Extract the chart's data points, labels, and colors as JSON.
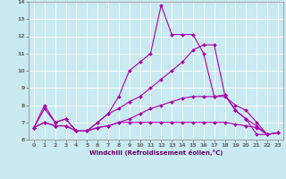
{
  "xlabel": "Windchill (Refroidissement éolien,°C)",
  "xlim": [
    -0.5,
    23.5
  ],
  "ylim": [
    6,
    14
  ],
  "background_color": "#c8eaf0",
  "grid_color": "#ffffff",
  "line_color": "#aa00aa",
  "curves": [
    {
      "x": [
        0,
        1,
        2,
        3,
        4,
        5,
        6,
        7,
        8,
        9,
        10,
        11,
        12,
        13,
        14,
        15,
        16,
        17,
        18,
        19,
        20,
        21,
        22,
        23
      ],
      "y": [
        6.7,
        8.0,
        7.0,
        7.2,
        6.5,
        6.5,
        7.0,
        7.5,
        8.5,
        10.0,
        10.5,
        11.0,
        13.8,
        12.1,
        12.1,
        12.1,
        11.0,
        8.5,
        8.6,
        7.7,
        7.2,
        6.3,
        6.3,
        6.4
      ]
    },
    {
      "x": [
        0,
        1,
        2,
        3,
        4,
        5,
        6,
        7,
        8,
        9,
        10,
        11,
        12,
        13,
        14,
        15,
        16,
        17,
        18,
        19,
        20,
        21,
        22,
        23
      ],
      "y": [
        6.7,
        7.8,
        7.0,
        7.2,
        6.5,
        6.5,
        7.0,
        7.5,
        7.8,
        8.2,
        8.5,
        9.0,
        9.5,
        10.0,
        10.5,
        11.2,
        11.5,
        11.5,
        8.6,
        7.7,
        7.2,
        6.8,
        6.3,
        6.4
      ]
    },
    {
      "x": [
        0,
        1,
        2,
        3,
        4,
        5,
        6,
        7,
        8,
        9,
        10,
        11,
        12,
        13,
        14,
        15,
        16,
        17,
        18,
        19,
        20,
        21,
        22,
        23
      ],
      "y": [
        6.7,
        7.0,
        6.8,
        6.8,
        6.5,
        6.5,
        6.7,
        6.8,
        7.0,
        7.2,
        7.5,
        7.8,
        8.0,
        8.2,
        8.4,
        8.5,
        8.5,
        8.5,
        8.5,
        8.0,
        7.7,
        7.0,
        6.3,
        6.4
      ]
    },
    {
      "x": [
        0,
        1,
        2,
        3,
        4,
        5,
        6,
        7,
        8,
        9,
        10,
        11,
        12,
        13,
        14,
        15,
        16,
        17,
        18,
        19,
        20,
        21,
        22,
        23
      ],
      "y": [
        6.7,
        7.0,
        6.8,
        6.8,
        6.5,
        6.5,
        6.7,
        6.8,
        7.0,
        7.0,
        7.0,
        7.0,
        7.0,
        7.0,
        7.0,
        7.0,
        7.0,
        7.0,
        7.0,
        6.9,
        6.8,
        6.7,
        6.3,
        6.4
      ]
    }
  ]
}
